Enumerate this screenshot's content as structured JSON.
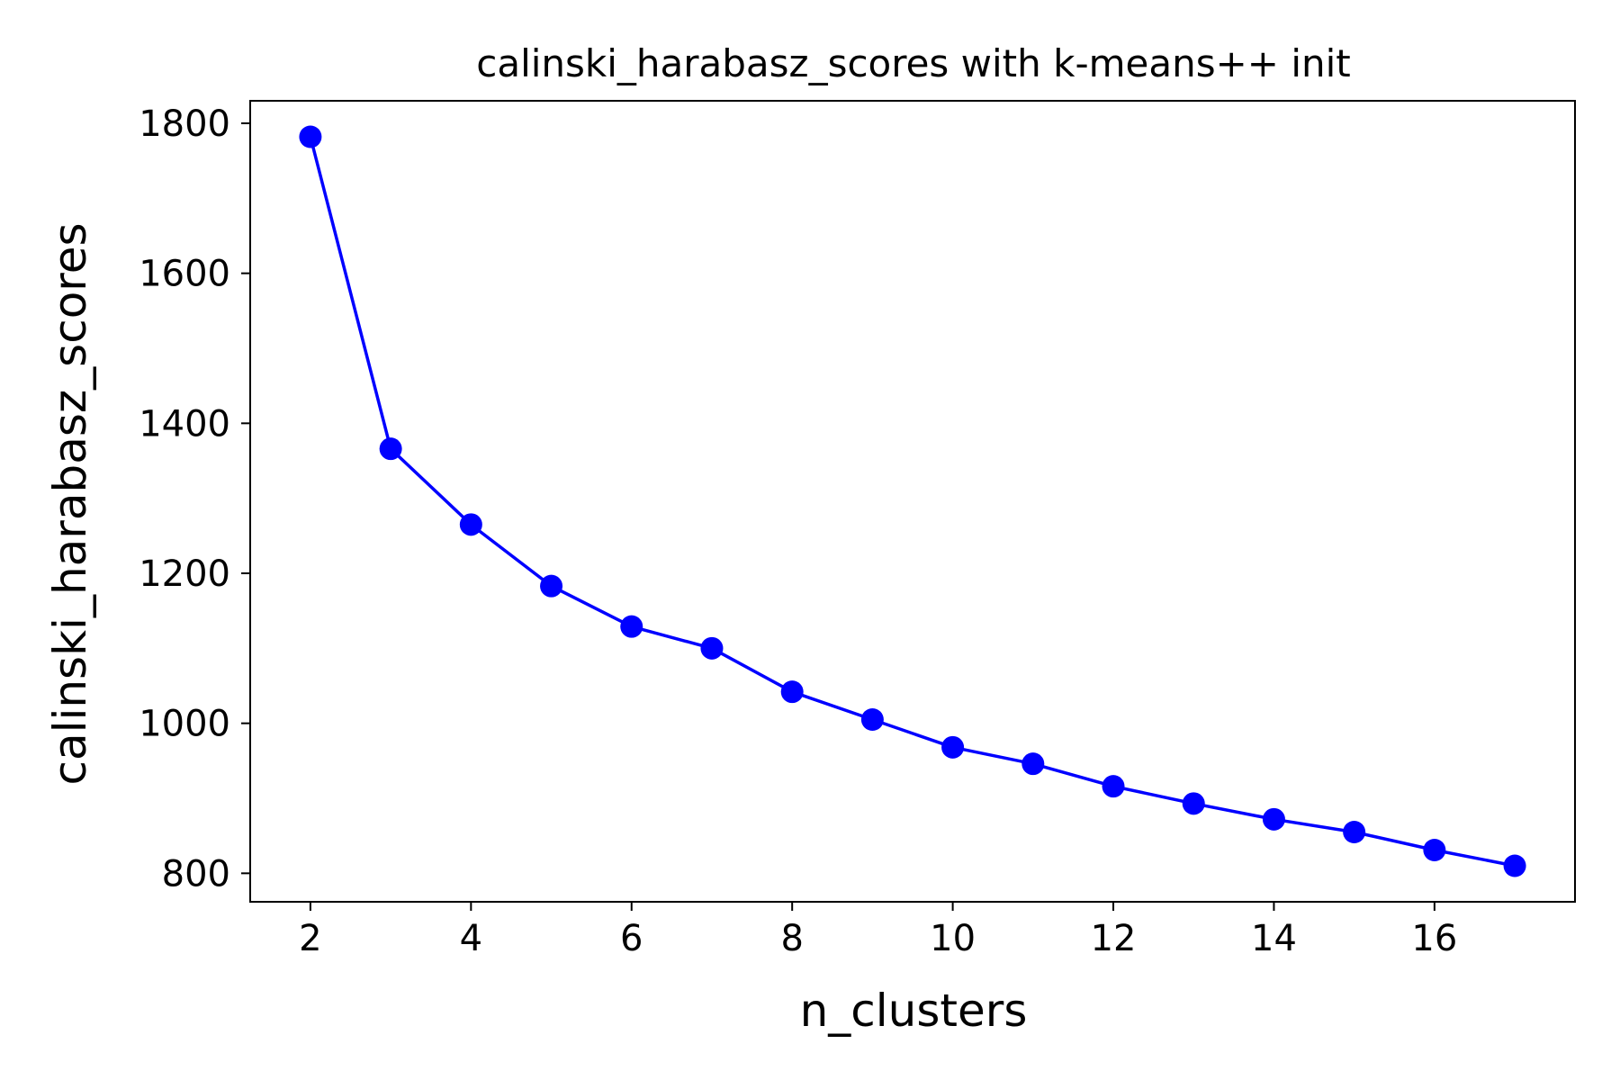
{
  "chart_data": {
    "type": "line",
    "title": "calinski_harabasz_scores with k-means++ init",
    "xlabel": "n_clusters",
    "ylabel": "calinski_harabasz_scores",
    "xlim": [
      1.25,
      17.75
    ],
    "ylim": [
      762,
      1830
    ],
    "xticks": [
      2,
      4,
      6,
      8,
      10,
      12,
      14,
      16
    ],
    "yticks": [
      800,
      1000,
      1200,
      1400,
      1600,
      1800
    ],
    "grid": false,
    "legend": "none",
    "series": [
      {
        "color": "#0000ff",
        "marker": "circle",
        "x": [
          2,
          3,
          4,
          5,
          6,
          7,
          8,
          9,
          10,
          11,
          12,
          13,
          14,
          15,
          16,
          17
        ],
        "values": [
          1782,
          1366,
          1265,
          1183,
          1129,
          1100,
          1042,
          1005,
          968,
          946,
          916,
          893,
          872,
          855,
          831,
          810
        ]
      }
    ]
  }
}
